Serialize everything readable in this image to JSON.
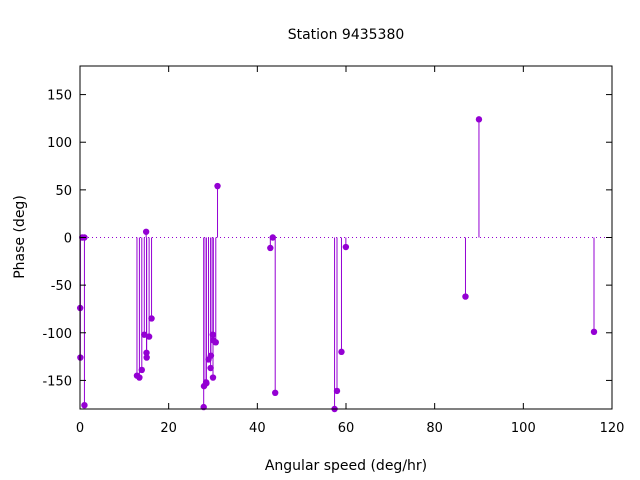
{
  "chart_data": {
    "type": "stem",
    "title": "Station 9435380",
    "xlabel": "Angular speed (deg/hr)",
    "ylabel": "Phase (deg)",
    "xlim": [
      0,
      120
    ],
    "ylim": [
      -180,
      180
    ],
    "x_ticks": [
      0,
      20,
      40,
      60,
      80,
      100,
      120
    ],
    "y_ticks": [
      -150,
      -100,
      -50,
      0,
      50,
      100,
      150
    ],
    "grid": false,
    "zero_line": "dotted",
    "color": "#9400d3",
    "points": [
      {
        "x": 0.04,
        "y": -74
      },
      {
        "x": 0.08,
        "y": -126
      },
      {
        "x": 0.5,
        "y": 0
      },
      {
        "x": 1.0,
        "y": 0
      },
      {
        "x": 1.0,
        "y": -176
      },
      {
        "x": 12.85,
        "y": -145
      },
      {
        "x": 13.4,
        "y": -147
      },
      {
        "x": 13.94,
        "y": -139
      },
      {
        "x": 14.5,
        "y": -102
      },
      {
        "x": 14.92,
        "y": 6
      },
      {
        "x": 15.0,
        "y": -121
      },
      {
        "x": 15.04,
        "y": -126
      },
      {
        "x": 15.59,
        "y": -104
      },
      {
        "x": 16.14,
        "y": -85
      },
      {
        "x": 27.9,
        "y": -178
      },
      {
        "x": 27.97,
        "y": -156
      },
      {
        "x": 28.44,
        "y": -152
      },
      {
        "x": 28.51,
        "y": -153
      },
      {
        "x": 28.99,
        "y": -128
      },
      {
        "x": 29.46,
        "y": -137
      },
      {
        "x": 29.53,
        "y": -124
      },
      {
        "x": 29.96,
        "y": -102
      },
      {
        "x": 30.0,
        "y": -147
      },
      {
        "x": 30.08,
        "y": -108
      },
      {
        "x": 30.63,
        "y": -110
      },
      {
        "x": 31.02,
        "y": 54
      },
      {
        "x": 42.93,
        "y": -11
      },
      {
        "x": 43.48,
        "y": 0
      },
      {
        "x": 44.03,
        "y": -163
      },
      {
        "x": 57.42,
        "y": -180
      },
      {
        "x": 57.97,
        "y": -161
      },
      {
        "x": 58.98,
        "y": -120
      },
      {
        "x": 59.97,
        "y": -10
      },
      {
        "x": 86.95,
        "y": -62
      },
      {
        "x": 89.99,
        "y": 124
      },
      {
        "x": 115.94,
        "y": -99
      }
    ]
  }
}
